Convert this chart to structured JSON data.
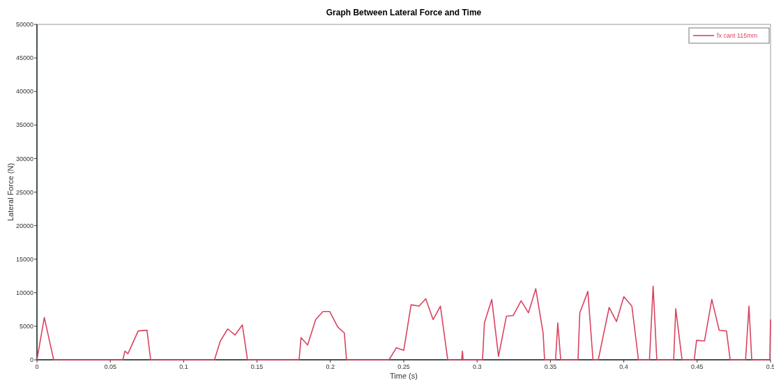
{
  "chart_data": {
    "type": "line",
    "title": "Graph Between Lateral Force and Time",
    "xlabel": "Time (s)",
    "ylabel": "Lateral Force (N)",
    "xlim": [
      0,
      0.5
    ],
    "xticks": [
      0,
      0.05,
      0.1,
      0.15,
      0.2,
      0.25,
      0.3,
      0.35,
      0.4,
      0.45,
      0.5
    ],
    "ylim": [
      0,
      50000
    ],
    "yticks": [
      0,
      5000,
      10000,
      15000,
      20000,
      25000,
      30000,
      35000,
      40000,
      45000,
      50000
    ],
    "grid": false,
    "legend": "top right",
    "marker": "none",
    "line_style": "solid",
    "series": [
      {
        "name": "fx cant 115mm",
        "color": "#d9435f",
        "x": [
          0,
          0.005,
          0.0114,
          0.0585,
          0.06,
          0.062,
          0.069,
          0.075,
          0.0775,
          0.121,
          0.125,
          0.13,
          0.135,
          0.14,
          0.1435,
          0.1787,
          0.18,
          0.1845,
          0.19,
          0.195,
          0.1995,
          0.205,
          0.2095,
          0.211,
          0.24,
          0.245,
          0.25,
          0.255,
          0.2605,
          0.265,
          0.27,
          0.275,
          0.28,
          0.2895,
          0.29,
          0.2905,
          0.3037,
          0.305,
          0.31,
          0.3146,
          0.32,
          0.3246,
          0.33,
          0.335,
          0.34,
          0.345,
          0.346,
          0.3535,
          0.355,
          0.357,
          0.3688,
          0.37,
          0.3755,
          0.379,
          0.3826,
          0.39,
          0.395,
          0.4,
          0.4055,
          0.41,
          0.4175,
          0.42,
          0.4225,
          0.434,
          0.4354,
          0.4397,
          0.448,
          0.4496,
          0.455,
          0.46,
          0.465,
          0.47,
          0.4725,
          0.483,
          0.4853,
          0.4872,
          0.4995,
          0.5
        ],
        "values": [
          0,
          6300,
          0,
          0,
          1300,
          900,
          4300,
          4400,
          0,
          0,
          2800,
          4600,
          3700,
          5200,
          0,
          0,
          3300,
          2200,
          6000,
          7200,
          7200,
          4900,
          4000,
          0,
          0,
          1800,
          1400,
          8200,
          8000,
          9100,
          6000,
          8000,
          0,
          0,
          1300,
          0,
          0,
          5500,
          9000,
          500,
          6500,
          6600,
          8800,
          7000,
          10600,
          4000,
          0,
          0,
          5500,
          0,
          0,
          7000,
          10200,
          0,
          0,
          7800,
          5700,
          9400,
          8000,
          0,
          0,
          11000,
          0,
          0,
          7600,
          0,
          0,
          2900,
          2800,
          9000,
          4400,
          4300,
          0,
          0,
          8000,
          0,
          0,
          6000
        ]
      }
    ]
  }
}
